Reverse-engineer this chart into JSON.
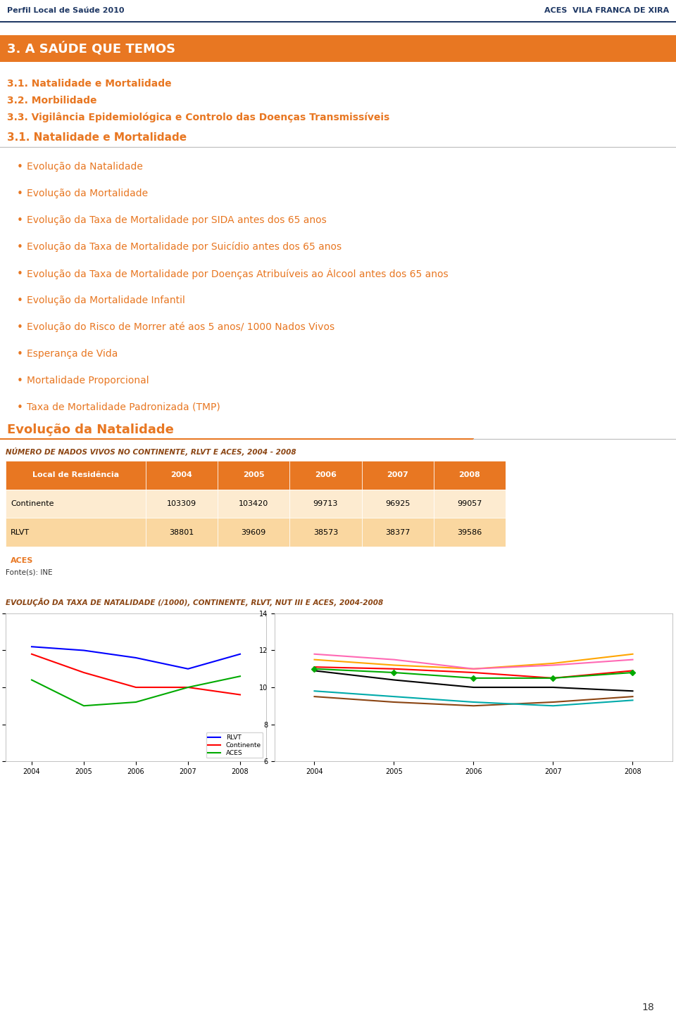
{
  "header_left": "Perfil Local de Saúde 2010",
  "header_right": "ACES  VILA FRANCA DE XIRA",
  "header_color": "#1F3864",
  "header_line_color": "#1F3864",
  "section_banner_text": "3. A SAÚDE QUE TEMOS",
  "section_banner_color": "#E87722",
  "section_banner_text_color": "#FFFFFF",
  "subsection1_text": "3.1. Natalidade e Mortalidade",
  "subsection2_text": "3.2. Morbilidade",
  "subsection3_text": "3.3. Vigilância Epidemiológica e Controlo das Doenças Transmissíveis",
  "subsection_color": "#E87722",
  "section_title": "3.1. Natalidade e Mortalidade",
  "section_title_line_color": "#C0C0C0",
  "bullet_items": [
    "Evolução da Natalidade",
    "Evolução da Mortalidade",
    "Evolução da Taxa de Mortalidade por SIDA antes dos 65 anos",
    "Evolução da Taxa de Mortalidade por Suicídio antes dos 65 anos",
    "Evolução da Taxa de Mortalidade por Doenças Atribuíveis ao Álcool antes dos 65 anos",
    "Evolução da Mortalidade Infantil",
    "Evolução do Risco de Morrer até aos 5 anos/ 1000 Nados Vivos",
    "Esperança de Vida",
    "Mortalidade Proporcional",
    "Taxa de Mortalidade Padronizada (TMP)"
  ],
  "bullet_color": "#E87722",
  "evol_section_title": "Evolução da Natalidade",
  "evol_section_line_color": "#E87722",
  "table_title": "NÚMERO DE NADOS VIVOS NO CONTINENTE, RLVT E ACES, 2004 - 2008",
  "table_title_color": "#8B4513",
  "table_header": [
    "Local de Residência",
    "2004",
    "2005",
    "2006",
    "2007",
    "2008"
  ],
  "table_header_bg": "#E87722",
  "table_header_text": "#FFFFFF",
  "table_row1": [
    "Continente",
    "103309",
    "103420",
    "99713",
    "96925",
    "99057"
  ],
  "table_row2": [
    "RLVT",
    "38801",
    "39609",
    "38573",
    "38377",
    "39586"
  ],
  "table_row3_label": "ACES",
  "table_row1_bg": "#FDEBD0",
  "table_row2_bg": "#FAD7A0",
  "table_row3_bg": "#FFFFFF",
  "table_aces_color": "#E87722",
  "fonte_text": "Fonte(s): INE",
  "chart_title": "EVOLUÇÃO DA TAXA DE NATALIDADE (/1000), CONTINENTE, RLVT, NUT III E ACES, 2004-2008",
  "chart_title_color": "#8B4513",
  "years": [
    2004,
    2005,
    2006,
    2007,
    2008
  ],
  "left_chart": {
    "continente": [
      10.9,
      10.4,
      10.0,
      10.0,
      9.8
    ],
    "rlvt": [
      11.1,
      11.0,
      10.8,
      10.5,
      10.9
    ],
    "aces": [
      10.2,
      9.5,
      9.6,
      10.0,
      10.3
    ],
    "continente_color": "#FF0000",
    "rlvt_color": "#0000FF",
    "aces_color": "#00AA00",
    "ylim": [
      8,
      12
    ],
    "yticks": [
      8,
      9,
      10,
      11,
      12
    ]
  },
  "right_chart": {
    "continente": [
      10.9,
      10.4,
      10.0,
      10.0,
      9.8
    ],
    "rlvt": [
      11.1,
      11.0,
      10.8,
      10.5,
      10.9
    ],
    "oeste": [
      11.5,
      11.2,
      11.0,
      11.3,
      11.8
    ],
    "medio_tejo": [
      9.5,
      9.2,
      9.0,
      9.2,
      9.5
    ],
    "grd_lisboa": [
      11.0,
      10.8,
      10.5,
      10.5,
      10.8
    ],
    "p_setubal": [
      11.8,
      11.5,
      11.0,
      11.2,
      11.5
    ],
    "l_tejo": [
      9.8,
      9.5,
      9.2,
      9.0,
      9.3
    ],
    "continente_color": "#000000",
    "rlvt_color": "#FF0000",
    "oeste_color": "#FFA500",
    "medio_tejo_color": "#8B4513",
    "grd_lisboa_color": "#00AA00",
    "p_setubal_color": "#FF69B4",
    "l_tejo_color": "#00AAAA",
    "ylim": [
      6,
      14
    ],
    "yticks": [
      6,
      8,
      10,
      12,
      14
    ]
  },
  "page_number": "18",
  "bg_color": "#FFFFFF"
}
